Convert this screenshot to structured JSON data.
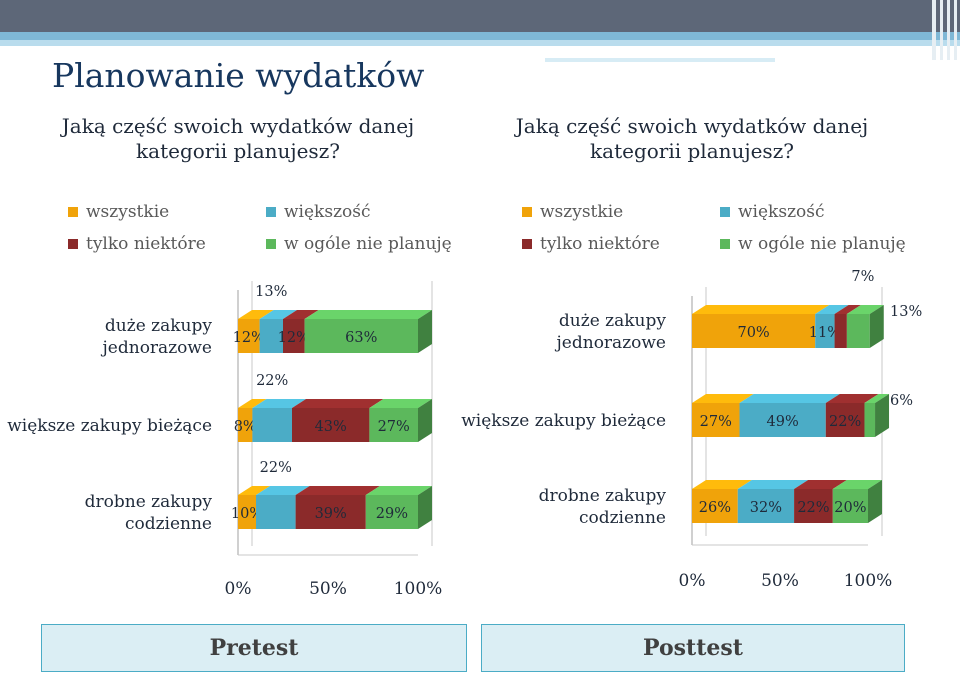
{
  "title": "Planowanie wydatków",
  "colors": {
    "wszystkie": "#f0a30a",
    "wiekszosc": "#4bacc6",
    "tylko_niektore": "#8b2a2a",
    "w_ogole_nie_planuje": "#5cb85c"
  },
  "panels": [
    {
      "question": "Jaką część swoich wydatków danej kategorii planujesz?",
      "legend": [
        {
          "label": "wszystkie",
          "color": "#f0a30a"
        },
        {
          "label": "większość",
          "color": "#4bacc6"
        },
        {
          "label": "tylko niektóre",
          "color": "#8b2a2a"
        },
        {
          "label": "w ogóle nie planuję",
          "color": "#5cb85c"
        }
      ],
      "caption": "Pretest"
    },
    {
      "question": "Jaką część swoich wydatków danej kategorii planujesz?",
      "legend": [
        {
          "label": "wszystkie",
          "color": "#f0a30a"
        },
        {
          "label": "większość",
          "color": "#4bacc6"
        },
        {
          "label": "tylko niektóre",
          "color": "#8b2a2a"
        },
        {
          "label": "w ogóle nie planuję",
          "color": "#5cb85c"
        }
      ],
      "caption": "Posttest"
    }
  ],
  "chart_data": [
    {
      "type": "bar",
      "orientation": "horizontal",
      "stacked": true,
      "panel": "Pretest",
      "categories": [
        "duże zakupy jednorazowe",
        "większe zakupy bieżące",
        "drobne zakupy codzienne"
      ],
      "series": [
        {
          "name": "wszystkie",
          "values": [
            12,
            8,
            10
          ],
          "labels": [
            "12%",
            "8%",
            "10%"
          ]
        },
        {
          "name": "większość",
          "values": [
            13,
            22,
            22
          ],
          "labels": [
            "13%",
            "22%",
            "22%"
          ]
        },
        {
          "name": "tylko niektóre",
          "values": [
            12,
            43,
            39
          ],
          "labels": [
            "12%",
            "43%",
            "39%"
          ]
        },
        {
          "name": "w ogóle nie planuję",
          "values": [
            63,
            27,
            29
          ],
          "labels": [
            "63%",
            "27%",
            "29%"
          ]
        }
      ],
      "xlim": [
        0,
        100
      ],
      "x_ticks": [
        "0%",
        "50%",
        "100%"
      ]
    },
    {
      "type": "bar",
      "orientation": "horizontal",
      "stacked": true,
      "panel": "Posttest",
      "categories": [
        "duże zakupy jednorazowe",
        "większe zakupy bieżące",
        "drobne zakupy codzienne"
      ],
      "series": [
        {
          "name": "wszystkie",
          "values": [
            70,
            27,
            26
          ],
          "labels": [
            "70%",
            "27%",
            "26%"
          ]
        },
        {
          "name": "większość",
          "values": [
            11,
            49,
            32
          ],
          "labels": [
            "11%",
            "49%",
            "32%"
          ]
        },
        {
          "name": "tylko niektóre",
          "values": [
            7,
            22,
            22
          ],
          "labels": [
            "7%",
            "22%",
            "22%"
          ]
        },
        {
          "name": "w ogóle nie planuję",
          "values": [
            13,
            6,
            20
          ],
          "labels": [
            "13%",
            "6%",
            "20%"
          ]
        }
      ],
      "xlim": [
        0,
        100
      ],
      "x_ticks": [
        "0%",
        "50%",
        "100%"
      ]
    }
  ]
}
